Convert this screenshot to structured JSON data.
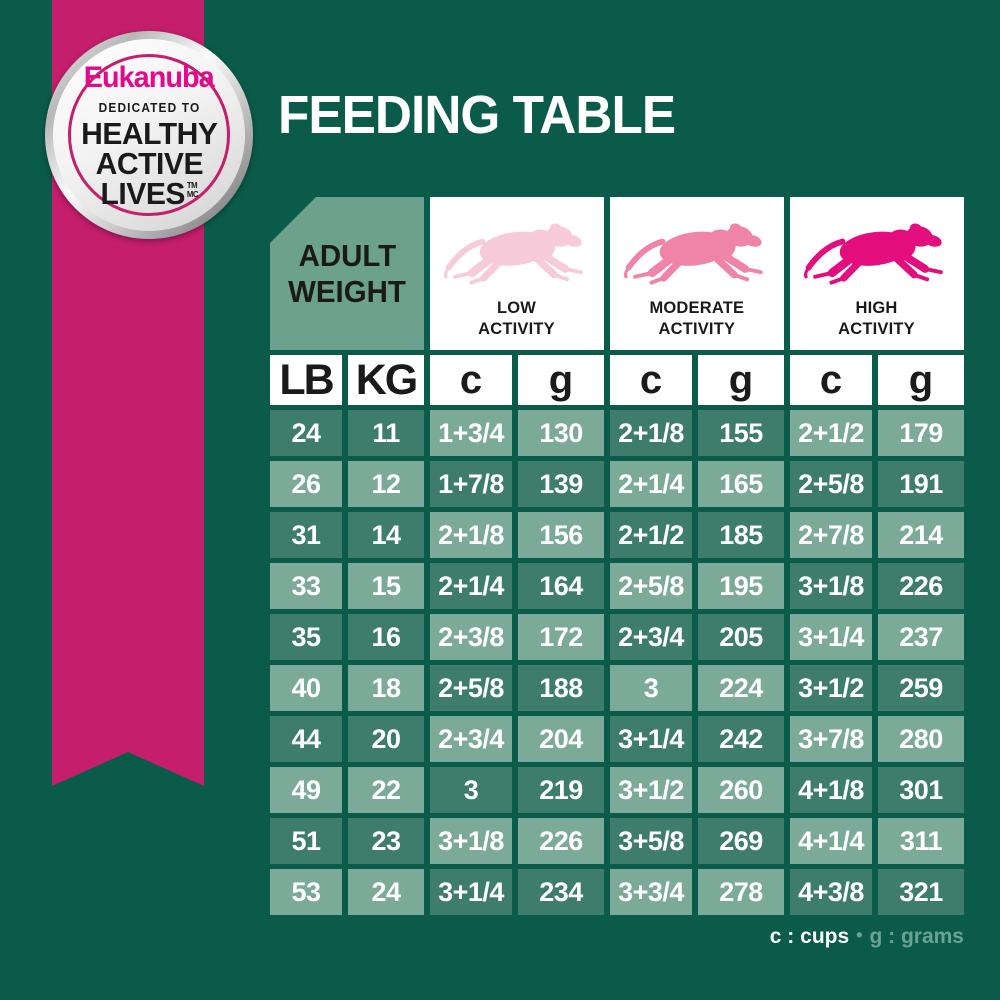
{
  "chart_data": {
    "type": "table",
    "title": "FEEDING TABLE",
    "column_groups": [
      "ADULT WEIGHT",
      "LOW ACTIVITY",
      "MODERATE ACTIVITY",
      "HIGH ACTIVITY"
    ],
    "columns": [
      "LB",
      "KG",
      "c",
      "g",
      "c",
      "g",
      "c",
      "g"
    ],
    "rows": [
      [
        "24",
        "11",
        "1+3/4",
        "130",
        "2+1/8",
        "155",
        "2+1/2",
        "179"
      ],
      [
        "26",
        "12",
        "1+7/8",
        "139",
        "2+1/4",
        "165",
        "2+5/8",
        "191"
      ],
      [
        "31",
        "14",
        "2+1/8",
        "156",
        "2+1/2",
        "185",
        "2+7/8",
        "214"
      ],
      [
        "33",
        "15",
        "2+1/4",
        "164",
        "2+5/8",
        "195",
        "3+1/8",
        "226"
      ],
      [
        "35",
        "16",
        "2+3/8",
        "172",
        "2+3/4",
        "205",
        "3+1/4",
        "237"
      ],
      [
        "40",
        "18",
        "2+5/8",
        "188",
        "3",
        "224",
        "3+1/2",
        "259"
      ],
      [
        "44",
        "20",
        "2+3/4",
        "204",
        "3+1/4",
        "242",
        "3+7/8",
        "280"
      ],
      [
        "49",
        "22",
        "3",
        "219",
        "3+1/2",
        "260",
        "4+1/8",
        "301"
      ],
      [
        "51",
        "23",
        "3+1/8",
        "226",
        "3+5/8",
        "269",
        "4+1/4",
        "311"
      ],
      [
        "53",
        "24",
        "3+1/4",
        "234",
        "3+3/4",
        "278",
        "4+3/8",
        "321"
      ]
    ],
    "unit_legend": {
      "c": "cups",
      "g": "grams"
    }
  },
  "badge": {
    "brand": "Eukanuba",
    "tagline": "DEDICATED TO",
    "lines": [
      "HEALTHY",
      "ACTIVE",
      "LIVES"
    ],
    "trademark": "TM",
    "trademark_fr": "MC"
  },
  "table": {
    "corner_lines": [
      "ADULT",
      "WEIGHT"
    ],
    "activity_columns": [
      {
        "lines": [
          "LOW",
          "ACTIVITY"
        ],
        "icon": "running-dog-icon",
        "dog_color": "#F7CBDA"
      },
      {
        "lines": [
          "MODERATE",
          "ACTIVITY"
        ],
        "icon": "running-dog-icon",
        "dog_color": "#EF84A8"
      },
      {
        "lines": [
          "HIGH",
          "ACTIVITY"
        ],
        "icon": "running-dog-icon",
        "dog_color": "#E40D7E"
      }
    ]
  },
  "legend": {
    "cups": "c : cups",
    "separator": "•",
    "grams": "g : grams"
  },
  "colors": {
    "background": "#0B5B4A",
    "ribbon": "#C41E6C",
    "brand_pink": "#E20A8C",
    "cell_dark": "#3E7D6B",
    "cell_light": "#7CAA98",
    "corner_box": "#6BA18D",
    "text_dark": "#1A1A1A",
    "legend_muted": "#6BA291",
    "white": "#FFFFFF"
  }
}
